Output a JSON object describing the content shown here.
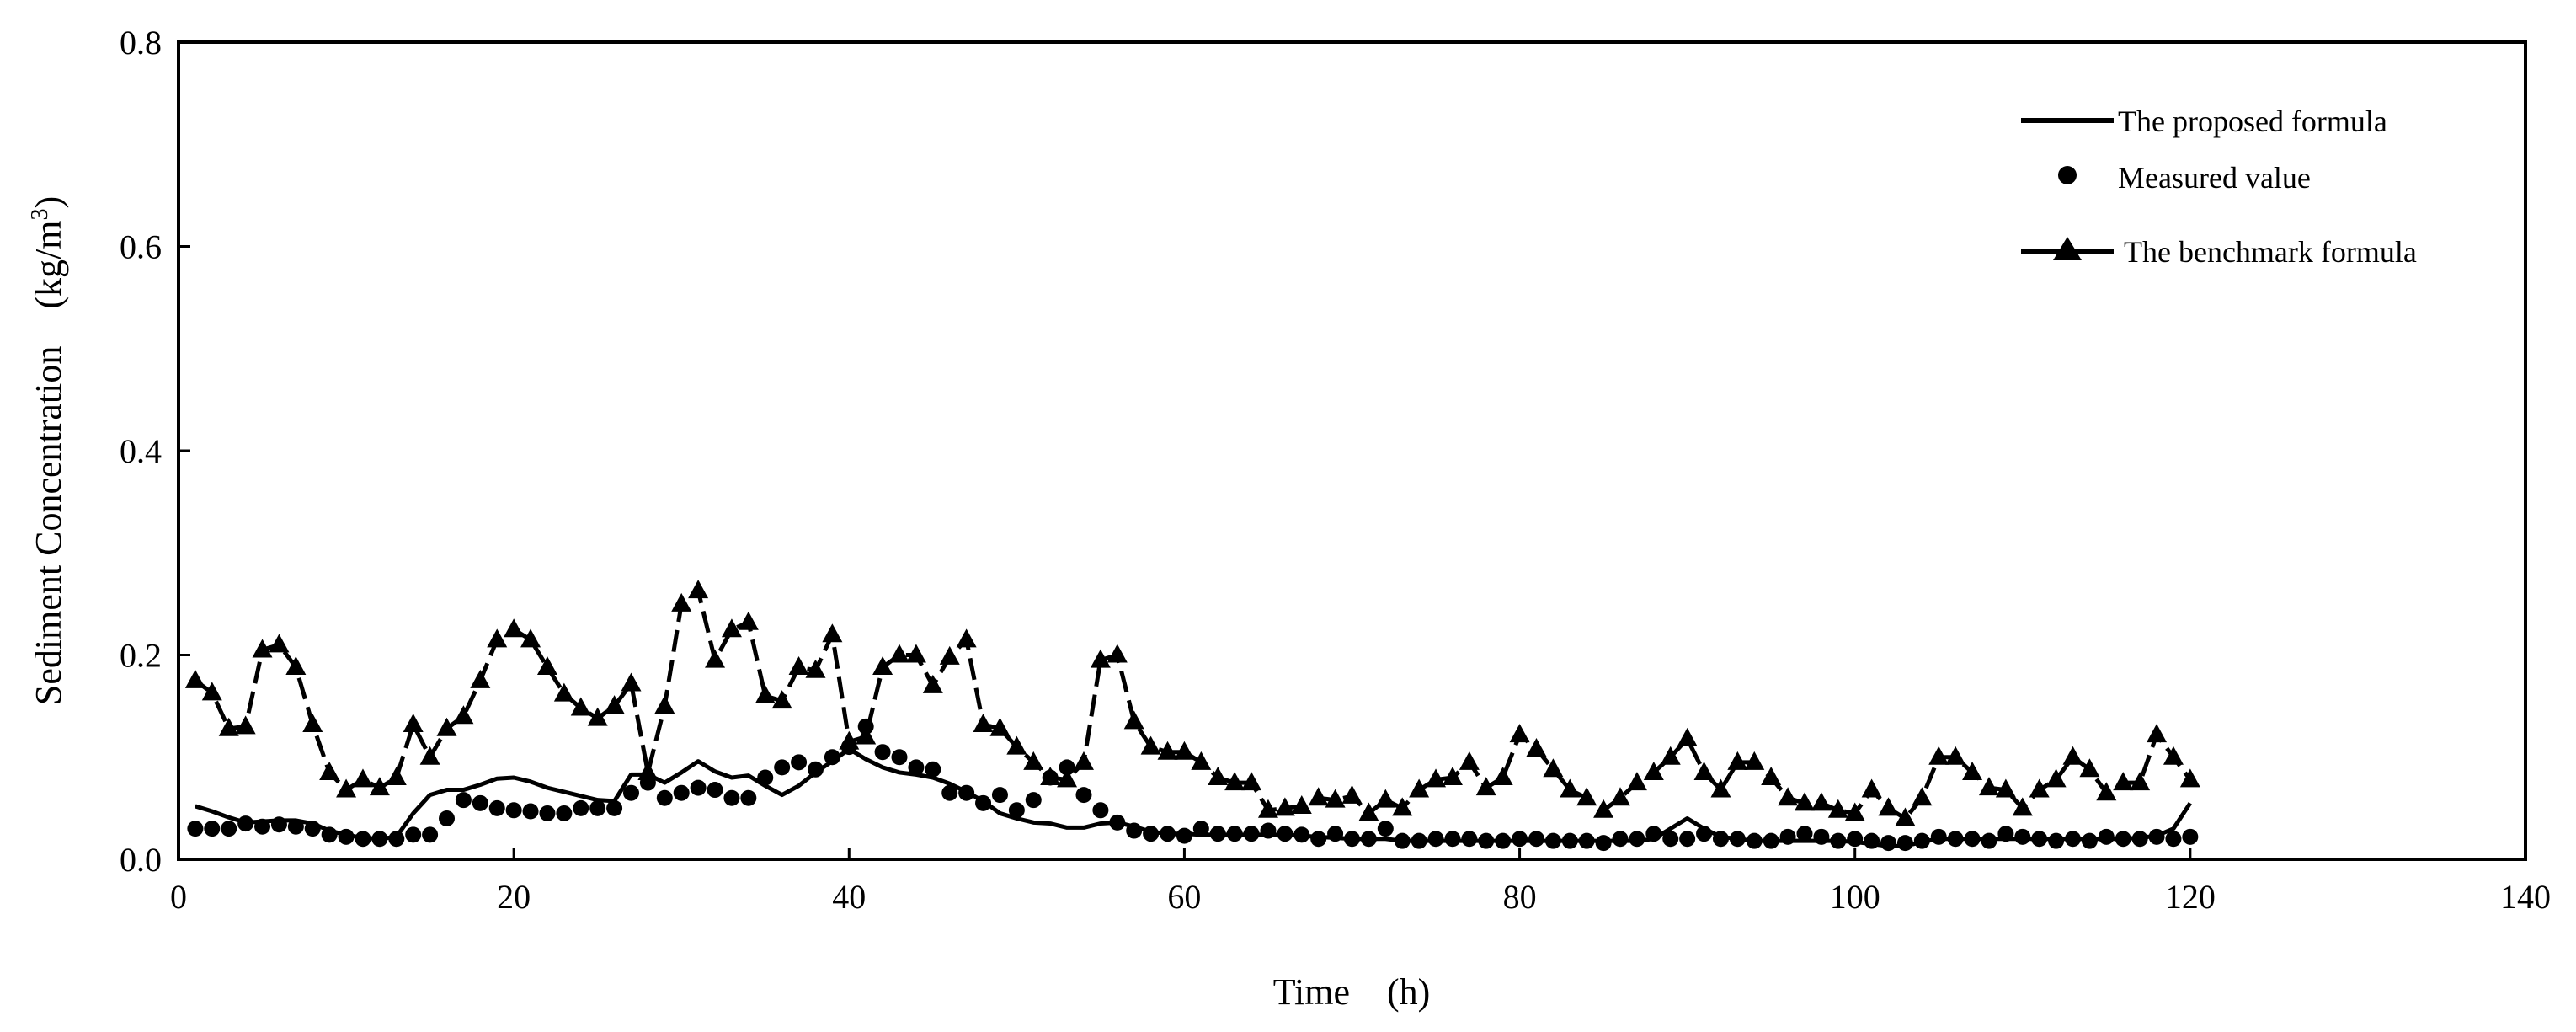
{
  "chart_data": {
    "type": "line",
    "title": "",
    "xlabel": "Time　(h)",
    "ylabel_main": "Sediment Concentration　(kg/m",
    "ylabel_sup": "3",
    "ylabel_close": ")",
    "xlim": [
      0,
      140
    ],
    "ylim": [
      0,
      0.8
    ],
    "x_ticks": [
      0,
      20,
      40,
      60,
      80,
      100,
      120,
      140
    ],
    "y_ticks": [
      0.0,
      0.2,
      0.4,
      0.6,
      0.8
    ],
    "x_tick_labels": [
      "0",
      "20",
      "40",
      "60",
      "80",
      "100",
      "120",
      "140"
    ],
    "y_tick_labels": [
      "0.0",
      "0.2",
      "0.4",
      "0.6",
      "0.8"
    ],
    "grid": false,
    "legend_position": "top-right",
    "legend": [
      {
        "label": "The proposed formula",
        "style": "line"
      },
      {
        "label": "Measured value",
        "style": "dot"
      },
      {
        "label": "The benchmark formula",
        "style": "dashed-triangle"
      }
    ],
    "series": [
      {
        "name": "The proposed formula",
        "style": "line",
        "x": [
          1,
          2,
          3,
          4,
          5,
          6,
          7,
          8,
          9,
          10,
          11,
          12,
          13,
          14,
          15,
          16,
          17,
          18,
          19,
          20,
          21,
          22,
          23,
          24,
          25,
          26,
          27,
          28,
          29,
          30,
          31,
          32,
          33,
          34,
          35,
          36,
          37,
          38,
          39,
          40,
          41,
          42,
          43,
          44,
          45,
          46,
          47,
          48,
          49,
          50,
          51,
          52,
          53,
          54,
          55,
          56,
          57,
          58,
          59,
          60,
          61,
          62,
          63,
          64,
          65,
          66,
          67,
          68,
          69,
          70,
          71,
          72,
          73,
          74,
          75,
          76,
          77,
          78,
          79,
          80,
          81,
          82,
          83,
          84,
          85,
          86,
          87,
          88,
          89,
          90,
          91,
          92,
          93,
          94,
          95,
          96,
          97,
          98,
          99,
          100,
          101,
          102,
          103,
          104,
          105,
          106,
          107,
          108,
          109,
          110,
          111,
          112,
          113,
          114,
          115,
          116,
          117,
          118,
          119,
          120
        ],
        "y": [
          0.052,
          0.047,
          0.041,
          0.036,
          0.037,
          0.038,
          0.038,
          0.035,
          0.028,
          0.024,
          0.021,
          0.02,
          0.022,
          0.045,
          0.063,
          0.068,
          0.068,
          0.073,
          0.079,
          0.08,
          0.076,
          0.07,
          0.066,
          0.062,
          0.058,
          0.057,
          0.083,
          0.083,
          0.075,
          0.085,
          0.096,
          0.086,
          0.08,
          0.082,
          0.072,
          0.063,
          0.072,
          0.085,
          0.096,
          0.108,
          0.098,
          0.09,
          0.085,
          0.083,
          0.08,
          0.074,
          0.066,
          0.057,
          0.045,
          0.04,
          0.036,
          0.035,
          0.031,
          0.031,
          0.035,
          0.036,
          0.032,
          0.027,
          0.025,
          0.025,
          0.024,
          0.024,
          0.024,
          0.024,
          0.024,
          0.024,
          0.023,
          0.022,
          0.021,
          0.02,
          0.02,
          0.02,
          0.018,
          0.018,
          0.018,
          0.018,
          0.018,
          0.018,
          0.018,
          0.018,
          0.018,
          0.018,
          0.018,
          0.018,
          0.018,
          0.018,
          0.018,
          0.02,
          0.03,
          0.04,
          0.03,
          0.022,
          0.02,
          0.018,
          0.018,
          0.018,
          0.018,
          0.018,
          0.018,
          0.017,
          0.015,
          0.013,
          0.013,
          0.017,
          0.02,
          0.02,
          0.02,
          0.02,
          0.02,
          0.02,
          0.02,
          0.02,
          0.02,
          0.02,
          0.02,
          0.02,
          0.021,
          0.023,
          0.03,
          0.055
        ]
      },
      {
        "name": "Measured value",
        "style": "dot",
        "x": [
          1,
          2,
          3,
          4,
          5,
          6,
          7,
          8,
          9,
          10,
          11,
          12,
          13,
          14,
          15,
          16,
          17,
          18,
          19,
          20,
          21,
          22,
          23,
          24,
          25,
          26,
          27,
          28,
          29,
          30,
          31,
          32,
          33,
          34,
          35,
          36,
          37,
          38,
          39,
          40,
          41,
          42,
          43,
          44,
          45,
          46,
          47,
          48,
          49,
          50,
          51,
          52,
          53,
          54,
          55,
          56,
          57,
          58,
          59,
          60,
          61,
          62,
          63,
          64,
          65,
          66,
          67,
          68,
          69,
          70,
          71,
          72,
          73,
          74,
          75,
          76,
          77,
          78,
          79,
          80,
          81,
          82,
          83,
          84,
          85,
          86,
          87,
          88,
          89,
          90,
          91,
          92,
          93,
          94,
          95,
          96,
          97,
          98,
          99,
          100,
          101,
          102,
          103,
          104,
          105,
          106,
          107,
          108,
          109,
          110,
          111,
          112,
          113,
          114,
          115,
          116,
          117,
          118,
          119,
          120
        ],
        "y": [
          0.03,
          0.03,
          0.03,
          0.035,
          0.032,
          0.034,
          0.032,
          0.03,
          0.024,
          0.022,
          0.02,
          0.02,
          0.02,
          0.024,
          0.024,
          0.04,
          0.058,
          0.055,
          0.05,
          0.048,
          0.047,
          0.045,
          0.045,
          0.05,
          0.05,
          0.05,
          0.065,
          0.075,
          0.06,
          0.065,
          0.07,
          0.068,
          0.06,
          0.06,
          0.08,
          0.09,
          0.095,
          0.088,
          0.1,
          0.11,
          0.13,
          0.105,
          0.1,
          0.09,
          0.088,
          0.065,
          0.065,
          0.055,
          0.063,
          0.048,
          0.058,
          0.08,
          0.09,
          0.063,
          0.048,
          0.036,
          0.028,
          0.025,
          0.025,
          0.023,
          0.03,
          0.025,
          0.025,
          0.025,
          0.028,
          0.025,
          0.024,
          0.02,
          0.025,
          0.02,
          0.02,
          0.03,
          0.018,
          0.018,
          0.02,
          0.02,
          0.02,
          0.018,
          0.018,
          0.02,
          0.02,
          0.018,
          0.018,
          0.018,
          0.016,
          0.02,
          0.02,
          0.025,
          0.02,
          0.02,
          0.025,
          0.02,
          0.02,
          0.018,
          0.018,
          0.022,
          0.025,
          0.022,
          0.018,
          0.02,
          0.018,
          0.016,
          0.016,
          0.018,
          0.022,
          0.02,
          0.02,
          0.018,
          0.025,
          0.022,
          0.02,
          0.018,
          0.02,
          0.018,
          0.022,
          0.02,
          0.02,
          0.022,
          0.02,
          0.022
        ]
      },
      {
        "name": "The benchmark formula",
        "style": "dashed-triangle",
        "x": [
          1,
          2,
          3,
          4,
          5,
          6,
          7,
          8,
          9,
          10,
          11,
          12,
          13,
          14,
          15,
          16,
          17,
          18,
          19,
          20,
          21,
          22,
          23,
          24,
          25,
          26,
          27,
          28,
          29,
          30,
          31,
          32,
          33,
          34,
          35,
          36,
          37,
          38,
          39,
          40,
          41,
          42,
          43,
          44,
          45,
          46,
          47,
          48,
          49,
          50,
          51,
          52,
          53,
          54,
          55,
          56,
          57,
          58,
          59,
          60,
          61,
          62,
          63,
          64,
          65,
          66,
          67,
          68,
          69,
          70,
          71,
          72,
          73,
          74,
          75,
          76,
          77,
          78,
          79,
          80,
          81,
          82,
          83,
          84,
          85,
          86,
          87,
          88,
          89,
          90,
          91,
          92,
          93,
          94,
          95,
          96,
          97,
          98,
          99,
          100,
          101,
          102,
          103,
          104,
          105,
          106,
          107,
          108,
          109,
          110,
          111,
          112,
          113,
          114,
          115,
          116,
          117,
          118,
          119,
          120
        ],
        "y": [
          0.175,
          0.163,
          0.128,
          0.13,
          0.205,
          0.21,
          0.188,
          0.132,
          0.085,
          0.068,
          0.078,
          0.07,
          0.08,
          0.132,
          0.1,
          0.128,
          0.14,
          0.175,
          0.215,
          0.225,
          0.215,
          0.188,
          0.162,
          0.148,
          0.138,
          0.15,
          0.172,
          0.085,
          0.15,
          0.25,
          0.263,
          0.195,
          0.225,
          0.232,
          0.16,
          0.155,
          0.188,
          0.185,
          0.22,
          0.115,
          0.12,
          0.188,
          0.2,
          0.2,
          0.17,
          0.198,
          0.215,
          0.132,
          0.128,
          0.11,
          0.095,
          0.08,
          0.078,
          0.095,
          0.195,
          0.2,
          0.135,
          0.11,
          0.105,
          0.105,
          0.095,
          0.08,
          0.075,
          0.075,
          0.048,
          0.05,
          0.052,
          0.06,
          0.058,
          0.062,
          0.045,
          0.058,
          0.05,
          0.068,
          0.078,
          0.08,
          0.095,
          0.07,
          0.08,
          0.122,
          0.108,
          0.088,
          0.068,
          0.06,
          0.048,
          0.06,
          0.075,
          0.085,
          0.1,
          0.118,
          0.085,
          0.068,
          0.095,
          0.095,
          0.08,
          0.06,
          0.055,
          0.055,
          0.048,
          0.045,
          0.068,
          0.05,
          0.04,
          0.06,
          0.1,
          0.1,
          0.085,
          0.07,
          0.068,
          0.05,
          0.068,
          0.078,
          0.1,
          0.088,
          0.065,
          0.075,
          0.075,
          0.122,
          0.1,
          0.078
        ]
      }
    ]
  }
}
